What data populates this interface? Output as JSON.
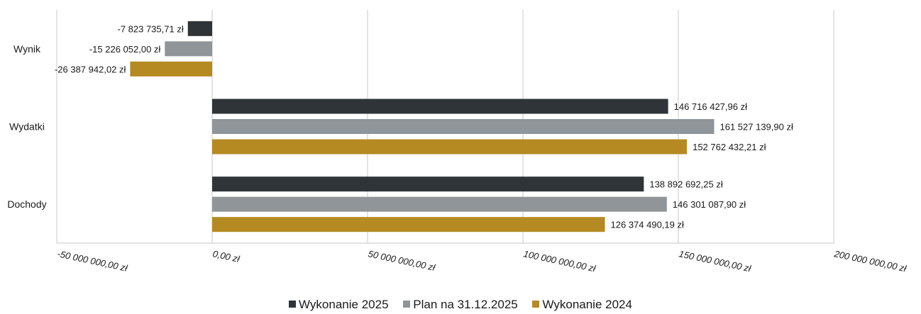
{
  "chart_data": {
    "type": "bar",
    "orientation": "horizontal",
    "categories": [
      "Wynik",
      "Wydatki",
      "Dochody"
    ],
    "series": [
      {
        "name": "Wykonanie 2025",
        "color": "#2f3438",
        "values": [
          -7823735.71,
          146716427.96,
          138892692.25
        ],
        "labels": [
          "-7 823 735,71 zł",
          "146 716 427,96 zł",
          "138 892 692,25 zł"
        ]
      },
      {
        "name": "Plan na 31.12.2025",
        "color": "#8f9599",
        "values": [
          -15226052.0,
          161527139.9,
          146301087.9
        ],
        "labels": [
          "-15 226 052,00 zł",
          "161 527 139,90 zł",
          "146 301 087,90 zł"
        ]
      },
      {
        "name": "Wykonanie 2024",
        "color": "#b58a22",
        "values": [
          -26387942.02,
          152762432.21,
          126374490.19
        ],
        "labels": [
          "-26 387 942,02 zł",
          "152 762 432,21 zł",
          "126 374 490,19 zł"
        ]
      }
    ],
    "x_ticks": [
      -50000000,
      0,
      50000000,
      100000000,
      150000000,
      200000000
    ],
    "x_tick_labels": [
      "-50 000 000,00 zł",
      "0,00 zł",
      "50 000 000,00 zł",
      "100 000 000,00 zł",
      "150 000 000,00 zł",
      "200 000 000,00 zł"
    ],
    "xlim": [
      -50000000,
      200000000
    ],
    "grid": true,
    "legend_position": "bottom"
  },
  "legend": {
    "item1": "Wykonanie 2025",
    "item2": "Plan na 31.12.2025",
    "item3": "Wykonanie 2024"
  }
}
